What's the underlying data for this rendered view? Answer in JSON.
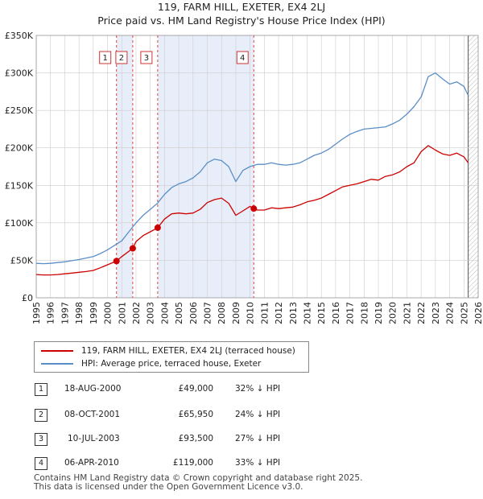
{
  "title_line1": "119, FARM HILL, EXETER, EX4 2LJ",
  "title_line2": "Price paid vs. HM Land Registry's House Price Index (HPI)",
  "colors": {
    "property": "#cc0000",
    "hpi": "#5b8ec7",
    "shade": "#e8eef9",
    "grid": "#cccccc"
  },
  "chart_data": {
    "type": "line",
    "title": "Price paid vs. HM Land Registry's House Price Index (HPI)",
    "xlim": [
      1995,
      2026
    ],
    "ylim": [
      0,
      350000
    ],
    "x_ticks": [
      1995,
      1996,
      1997,
      1998,
      1999,
      2000,
      2001,
      2002,
      2003,
      2004,
      2005,
      2006,
      2007,
      2008,
      2009,
      2010,
      2011,
      2012,
      2013,
      2014,
      2015,
      2016,
      2017,
      2018,
      2019,
      2020,
      2021,
      2022,
      2023,
      2024,
      2025,
      2026
    ],
    "y_ticks": [
      {
        "value": 0,
        "label": "£0"
      },
      {
        "value": 50000,
        "label": "£50K"
      },
      {
        "value": 100000,
        "label": "£100K"
      },
      {
        "value": 150000,
        "label": "£150K"
      },
      {
        "value": 200000,
        "label": "£200K"
      },
      {
        "value": 250000,
        "label": "£250K"
      },
      {
        "value": 300000,
        "label": "£300K"
      },
      {
        "value": 350000,
        "label": "£350K"
      }
    ],
    "shaded_ranges": [
      [
        2000.63,
        2001.77
      ],
      [
        2003.52,
        2010.26
      ]
    ],
    "future_hatch_from": 2025.3,
    "series": [
      {
        "name": "119, FARM HILL, EXETER, EX4 2LJ (terraced house)",
        "x": [
          1995,
          1995.5,
          1996,
          1996.5,
          1997,
          1997.5,
          1998,
          1998.5,
          1999,
          1999.5,
          2000,
          2000.63,
          2001,
          2001.77,
          2002,
          2002.5,
          2003,
          2003.52,
          2004,
          2004.5,
          2005,
          2005.5,
          2006,
          2006.5,
          2007,
          2007.5,
          2008,
          2008.5,
          2009,
          2009.5,
          2010,
          2010.26,
          2010.5,
          2011,
          2011.5,
          2012,
          2012.5,
          2013,
          2013.5,
          2014,
          2014.5,
          2015,
          2015.5,
          2016,
          2016.5,
          2017,
          2017.5,
          2018,
          2018.5,
          2019,
          2019.5,
          2020,
          2020.5,
          2021,
          2021.5,
          2022,
          2022.5,
          2023,
          2023.5,
          2024,
          2024.5,
          2025,
          2025.3
        ],
        "values": [
          31000,
          30500,
          30500,
          31000,
          32000,
          33000,
          34000,
          35000,
          36500,
          40000,
          44000,
          49000,
          55000,
          65950,
          75000,
          83000,
          88000,
          93500,
          105000,
          112000,
          113000,
          112000,
          113000,
          118000,
          127000,
          131000,
          133000,
          126000,
          110000,
          116000,
          122000,
          119000,
          117000,
          117000,
          120000,
          119000,
          120000,
          121000,
          124000,
          128000,
          130000,
          133000,
          138000,
          143000,
          148000,
          150000,
          152000,
          155000,
          158000,
          157000,
          162000,
          164000,
          168000,
          175000,
          180000,
          195000,
          203000,
          197000,
          192000,
          190000,
          193000,
          188000,
          180000
        ]
      },
      {
        "name": "HPI: Average price, terraced house, Exeter",
        "x": [
          1995,
          1995.5,
          1996,
          1996.5,
          1997,
          1997.5,
          1998,
          1998.5,
          1999,
          1999.5,
          2000,
          2000.5,
          2001,
          2001.5,
          2002,
          2002.5,
          2003,
          2003.5,
          2004,
          2004.5,
          2005,
          2005.5,
          2006,
          2006.5,
          2007,
          2007.5,
          2008,
          2008.5,
          2009,
          2009.5,
          2010,
          2010.5,
          2011,
          2011.5,
          2012,
          2012.5,
          2013,
          2013.5,
          2014,
          2014.5,
          2015,
          2015.5,
          2016,
          2016.5,
          2017,
          2017.5,
          2018,
          2018.5,
          2019,
          2019.5,
          2020,
          2020.5,
          2021,
          2021.5,
          2022,
          2022.5,
          2023,
          2023.5,
          2024,
          2024.5,
          2025,
          2025.3
        ],
        "values": [
          46000,
          45500,
          46000,
          47000,
          48000,
          49500,
          51000,
          53000,
          55000,
          59000,
          64000,
          70000,
          76000,
          88000,
          100000,
          110000,
          118000,
          126000,
          138000,
          147000,
          152000,
          155000,
          160000,
          168000,
          180000,
          185000,
          183000,
          175000,
          155000,
          170000,
          175000,
          178000,
          178000,
          180000,
          178000,
          177000,
          178000,
          180000,
          185000,
          190000,
          193000,
          198000,
          205000,
          212000,
          218000,
          222000,
          225000,
          226000,
          227000,
          228000,
          232000,
          237000,
          245000,
          255000,
          268000,
          295000,
          300000,
          292000,
          285000,
          288000,
          282000,
          270000
        ]
      }
    ],
    "sale_markers": [
      {
        "label": "1",
        "x": 2000.63,
        "value": 49000
      },
      {
        "label": "2",
        "x": 2001.77,
        "value": 65950
      },
      {
        "label": "3",
        "x": 2003.52,
        "value": 93500
      },
      {
        "label": "4",
        "x": 2010.26,
        "value": 119000
      }
    ]
  },
  "legend": {
    "property_label": "119, FARM HILL, EXETER, EX4 2LJ (terraced house)",
    "hpi_label": "HPI: Average price, terraced house, Exeter"
  },
  "sales": [
    {
      "num": "1",
      "date": "18-AUG-2000",
      "price": "£49,000",
      "hpi": "32% ↓ HPI"
    },
    {
      "num": "2",
      "date": "08-OCT-2001",
      "price": "£65,950",
      "hpi": "24% ↓ HPI"
    },
    {
      "num": "3",
      "date": "10-JUL-2003",
      "price": "£93,500",
      "hpi": "27% ↓ HPI"
    },
    {
      "num": "4",
      "date": "06-APR-2010",
      "price": "£119,000",
      "hpi": "33% ↓ HPI"
    }
  ],
  "footer_line1": "Contains HM Land Registry data © Crown copyright and database right 2025.",
  "footer_line2": "This data is licensed under the Open Government Licence v3.0."
}
